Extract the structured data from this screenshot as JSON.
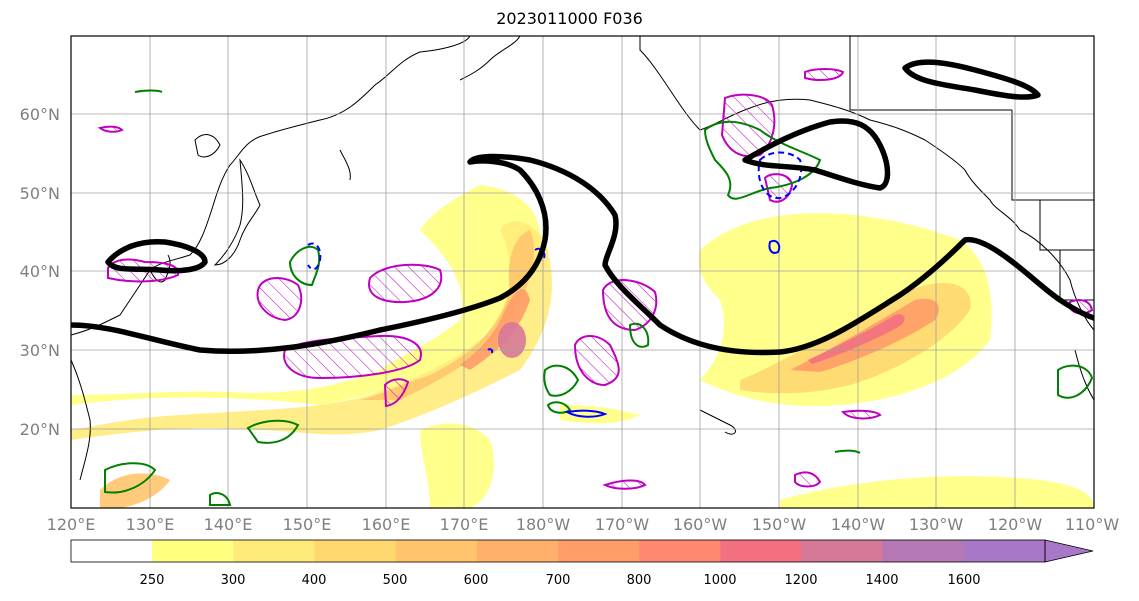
{
  "title": "2023011000 F036",
  "lat_labels": [
    "60°N",
    "50°N",
    "40°N",
    "30°N",
    "20°N"
  ],
  "lon_labels": [
    "120°E",
    "130°E",
    "140°E",
    "150°E",
    "160°E",
    "170°E",
    "180°W",
    "170°W",
    "160°W",
    "150°W",
    "140°W",
    "130°W",
    "120°W",
    "110°W"
  ],
  "colorbar": {
    "levels": [
      "250",
      "300",
      "400",
      "500",
      "600",
      "700",
      "800",
      "1000",
      "1200",
      "1400",
      "1600"
    ],
    "colors": [
      "#ffffff",
      "#ffff80",
      "#ffeb7a",
      "#ffd870",
      "#ffc46c",
      "#ffb06a",
      "#ff9c68",
      "#ff8870",
      "#f27080",
      "#d67898",
      "#b478b4",
      "#a878c8"
    ]
  },
  "legend_colors": {
    "jet_contour": "#000000",
    "magenta_contour": "#c000c0",
    "green_contour": "#008000",
    "blue_contour": "#0000ff",
    "coastline": "#000000"
  }
}
